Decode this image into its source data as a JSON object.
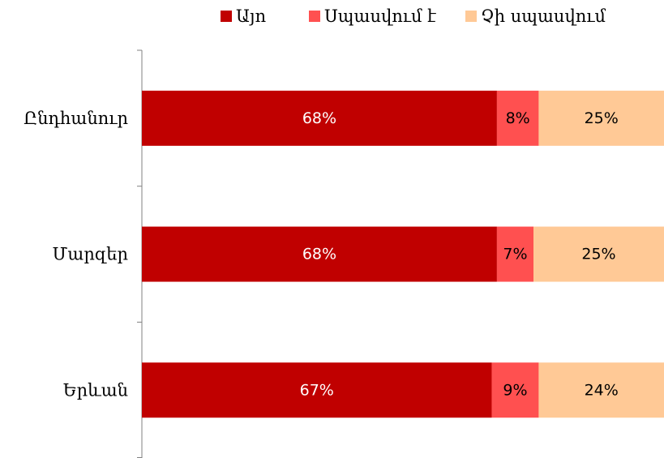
{
  "chart_data": {
    "type": "bar",
    "orientation": "horizontal",
    "stacked": true,
    "percent_stacked": true,
    "categories": [
      "Ընդհանուր",
      "Մարզեր",
      "Երևան"
    ],
    "series": [
      {
        "name": "Այո",
        "values": [
          68,
          68,
          67
        ],
        "labels": [
          "68%",
          "68%",
          "67%"
        ],
        "color": "#C00000",
        "label_color": "#FFFFFF"
      },
      {
        "name": "Սպասվում է",
        "values": [
          8,
          7,
          9
        ],
        "labels": [
          "8%",
          "7%",
          "9%"
        ],
        "color": "#FF5050",
        "label_color": "#000000"
      },
      {
        "name": "Չի սպասվում",
        "values": [
          25,
          25,
          24
        ],
        "labels": [
          "25%",
          "25%",
          "24%"
        ],
        "color": "#FFC996",
        "label_color": "#000000"
      }
    ],
    "xlim": [
      0,
      100
    ],
    "grid": false,
    "legend_position": "top-right"
  }
}
